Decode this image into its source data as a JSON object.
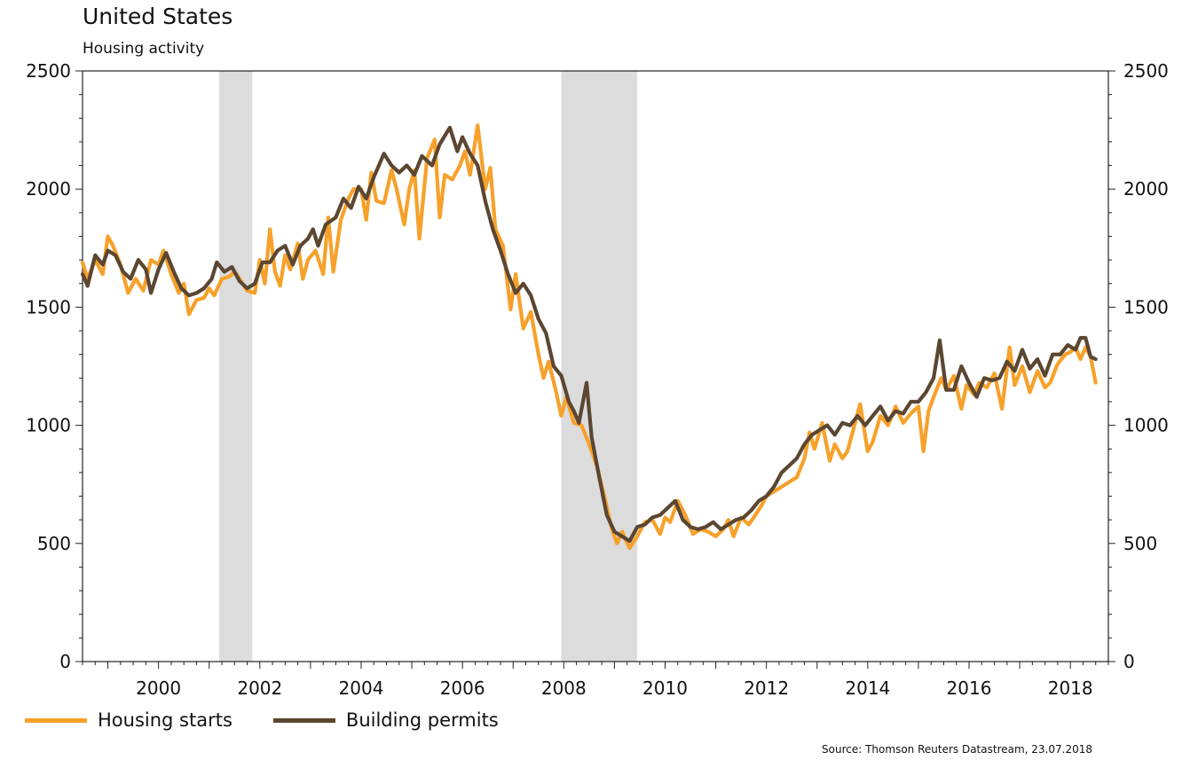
{
  "header": {
    "title": "United States",
    "subtitle": "Housing activity"
  },
  "source": "Source: Thomson Reuters Datastream, 23.07.2018",
  "colors": {
    "housing_starts": "#F7A12A",
    "building_permits": "#5B4631",
    "recession_shade": "#DCDCDC"
  },
  "chart_data": {
    "type": "line",
    "title": "United States",
    "subtitle": "Housing activity",
    "xlabel": "",
    "ylabel": "",
    "xlim": [
      1998.5,
      2018.75
    ],
    "ylim": [
      0,
      2500
    ],
    "x_ticks": [
      "2000",
      "2002",
      "2004",
      "2006",
      "2008",
      "2010",
      "2012",
      "2014",
      "2016",
      "2018"
    ],
    "y_ticks_left": [
      "0",
      "500",
      "1000",
      "1500",
      "2000",
      "2500"
    ],
    "y_ticks_right": [
      "0",
      "500",
      "1000",
      "1500",
      "2000",
      "2500"
    ],
    "grid": false,
    "legend_position": "bottom-left",
    "recessions": [
      [
        2001.2,
        2001.85
      ],
      [
        2007.95,
        2009.45
      ]
    ],
    "series": [
      {
        "name": "Housing starts",
        "points": [
          [
            1998.5,
            1690
          ],
          [
            1998.6,
            1620
          ],
          [
            1998.75,
            1700
          ],
          [
            1998.9,
            1640
          ],
          [
            1999.0,
            1800
          ],
          [
            1999.1,
            1760
          ],
          [
            1999.25,
            1680
          ],
          [
            1999.4,
            1560
          ],
          [
            1999.55,
            1620
          ],
          [
            1999.7,
            1570
          ],
          [
            1999.85,
            1700
          ],
          [
            2000.0,
            1680
          ],
          [
            2000.1,
            1740
          ],
          [
            2000.25,
            1640
          ],
          [
            2000.4,
            1560
          ],
          [
            2000.5,
            1600
          ],
          [
            2000.6,
            1470
          ],
          [
            2000.75,
            1530
          ],
          [
            2000.9,
            1540
          ],
          [
            2001.0,
            1580
          ],
          [
            2001.1,
            1550
          ],
          [
            2001.25,
            1620
          ],
          [
            2001.4,
            1630
          ],
          [
            2001.5,
            1650
          ],
          [
            2001.6,
            1620
          ],
          [
            2001.75,
            1570
          ],
          [
            2001.9,
            1560
          ],
          [
            2002.0,
            1700
          ],
          [
            2002.1,
            1600
          ],
          [
            2002.2,
            1830
          ],
          [
            2002.3,
            1650
          ],
          [
            2002.4,
            1590
          ],
          [
            2002.5,
            1720
          ],
          [
            2002.6,
            1660
          ],
          [
            2002.75,
            1770
          ],
          [
            2002.85,
            1620
          ],
          [
            2002.95,
            1700
          ],
          [
            2003.1,
            1740
          ],
          [
            2003.25,
            1640
          ],
          [
            2003.35,
            1880
          ],
          [
            2003.45,
            1650
          ],
          [
            2003.6,
            1870
          ],
          [
            2003.75,
            1960
          ],
          [
            2003.85,
            2000
          ],
          [
            2004.0,
            2000
          ],
          [
            2004.1,
            1870
          ],
          [
            2004.2,
            2070
          ],
          [
            2004.3,
            1950
          ],
          [
            2004.45,
            1940
          ],
          [
            2004.6,
            2080
          ],
          [
            2004.7,
            2000
          ],
          [
            2004.85,
            1850
          ],
          [
            2004.95,
            2000
          ],
          [
            2005.05,
            2080
          ],
          [
            2005.15,
            1790
          ],
          [
            2005.3,
            2130
          ],
          [
            2005.45,
            2210
          ],
          [
            2005.55,
            1880
          ],
          [
            2005.65,
            2060
          ],
          [
            2005.8,
            2040
          ],
          [
            2005.95,
            2100
          ],
          [
            2006.05,
            2160
          ],
          [
            2006.15,
            2060
          ],
          [
            2006.3,
            2270
          ],
          [
            2006.45,
            2000
          ],
          [
            2006.55,
            2090
          ],
          [
            2006.65,
            1830
          ],
          [
            2006.8,
            1760
          ],
          [
            2006.95,
            1490
          ],
          [
            2007.05,
            1640
          ],
          [
            2007.2,
            1410
          ],
          [
            2007.35,
            1480
          ],
          [
            2007.5,
            1300
          ],
          [
            2007.6,
            1200
          ],
          [
            2007.7,
            1270
          ],
          [
            2007.85,
            1140
          ],
          [
            2007.95,
            1040
          ],
          [
            2008.05,
            1120
          ],
          [
            2008.2,
            1010
          ],
          [
            2008.35,
            1000
          ],
          [
            2008.5,
            920
          ],
          [
            2008.65,
            830
          ],
          [
            2008.8,
            700
          ],
          [
            2008.95,
            560
          ],
          [
            2009.05,
            500
          ],
          [
            2009.15,
            550
          ],
          [
            2009.3,
            480
          ],
          [
            2009.45,
            530
          ],
          [
            2009.6,
            590
          ],
          [
            2009.75,
            600
          ],
          [
            2009.9,
            540
          ],
          [
            2010.0,
            610
          ],
          [
            2010.1,
            590
          ],
          [
            2010.25,
            680
          ],
          [
            2010.4,
            620
          ],
          [
            2010.55,
            540
          ],
          [
            2010.7,
            560
          ],
          [
            2010.85,
            550
          ],
          [
            2011.0,
            530
          ],
          [
            2011.15,
            560
          ],
          [
            2011.25,
            600
          ],
          [
            2011.35,
            530
          ],
          [
            2011.5,
            610
          ],
          [
            2011.65,
            580
          ],
          [
            2011.75,
            610
          ],
          [
            2011.9,
            660
          ],
          [
            2012.0,
            700
          ],
          [
            2012.15,
            720
          ],
          [
            2012.3,
            740
          ],
          [
            2012.45,
            760
          ],
          [
            2012.6,
            780
          ],
          [
            2012.75,
            860
          ],
          [
            2012.85,
            970
          ],
          [
            2012.95,
            900
          ],
          [
            2013.1,
            1010
          ],
          [
            2013.25,
            850
          ],
          [
            2013.35,
            920
          ],
          [
            2013.5,
            860
          ],
          [
            2013.6,
            890
          ],
          [
            2013.75,
            1010
          ],
          [
            2013.85,
            1090
          ],
          [
            2014.0,
            890
          ],
          [
            2014.1,
            930
          ],
          [
            2014.25,
            1040
          ],
          [
            2014.4,
            1000
          ],
          [
            2014.55,
            1080
          ],
          [
            2014.7,
            1010
          ],
          [
            2014.85,
            1050
          ],
          [
            2015.0,
            1080
          ],
          [
            2015.1,
            890
          ],
          [
            2015.2,
            1060
          ],
          [
            2015.3,
            1120
          ],
          [
            2015.45,
            1200
          ],
          [
            2015.55,
            1150
          ],
          [
            2015.7,
            1210
          ],
          [
            2015.85,
            1070
          ],
          [
            2015.95,
            1170
          ],
          [
            2016.1,
            1130
          ],
          [
            2016.2,
            1180
          ],
          [
            2016.35,
            1160
          ],
          [
            2016.5,
            1220
          ],
          [
            2016.65,
            1070
          ],
          [
            2016.8,
            1330
          ],
          [
            2016.9,
            1170
          ],
          [
            2017.05,
            1250
          ],
          [
            2017.2,
            1140
          ],
          [
            2017.35,
            1230
          ],
          [
            2017.5,
            1160
          ],
          [
            2017.6,
            1180
          ],
          [
            2017.75,
            1260
          ],
          [
            2017.9,
            1300
          ],
          [
            2018.0,
            1310
          ],
          [
            2018.1,
            1330
          ],
          [
            2018.2,
            1280
          ],
          [
            2018.3,
            1330
          ],
          [
            2018.4,
            1290
          ],
          [
            2018.5,
            1180
          ]
        ]
      },
      {
        "name": "Building permits",
        "points": [
          [
            1998.5,
            1640
          ],
          [
            1998.6,
            1590
          ],
          [
            1998.75,
            1720
          ],
          [
            1998.9,
            1680
          ],
          [
            1999.0,
            1740
          ],
          [
            1999.15,
            1720
          ],
          [
            1999.3,
            1650
          ],
          [
            1999.45,
            1620
          ],
          [
            1999.6,
            1700
          ],
          [
            1999.75,
            1660
          ],
          [
            1999.85,
            1560
          ],
          [
            2000.0,
            1660
          ],
          [
            2000.15,
            1730
          ],
          [
            2000.3,
            1650
          ],
          [
            2000.45,
            1580
          ],
          [
            2000.6,
            1550
          ],
          [
            2000.75,
            1560
          ],
          [
            2000.9,
            1580
          ],
          [
            2001.05,
            1620
          ],
          [
            2001.15,
            1690
          ],
          [
            2001.3,
            1650
          ],
          [
            2001.45,
            1670
          ],
          [
            2001.6,
            1610
          ],
          [
            2001.75,
            1580
          ],
          [
            2001.9,
            1600
          ],
          [
            2002.05,
            1690
          ],
          [
            2002.2,
            1690
          ],
          [
            2002.35,
            1740
          ],
          [
            2002.5,
            1760
          ],
          [
            2002.65,
            1680
          ],
          [
            2002.8,
            1760
          ],
          [
            2002.95,
            1790
          ],
          [
            2003.05,
            1830
          ],
          [
            2003.15,
            1760
          ],
          [
            2003.3,
            1850
          ],
          [
            2003.5,
            1880
          ],
          [
            2003.65,
            1960
          ],
          [
            2003.8,
            1920
          ],
          [
            2003.95,
            2010
          ],
          [
            2004.1,
            1960
          ],
          [
            2004.25,
            2050
          ],
          [
            2004.45,
            2150
          ],
          [
            2004.6,
            2100
          ],
          [
            2004.75,
            2070
          ],
          [
            2004.9,
            2100
          ],
          [
            2005.05,
            2060
          ],
          [
            2005.2,
            2140
          ],
          [
            2005.4,
            2100
          ],
          [
            2005.55,
            2190
          ],
          [
            2005.75,
            2260
          ],
          [
            2005.9,
            2160
          ],
          [
            2006.0,
            2220
          ],
          [
            2006.15,
            2150
          ],
          [
            2006.3,
            2100
          ],
          [
            2006.45,
            1950
          ],
          [
            2006.6,
            1830
          ],
          [
            2006.75,
            1740
          ],
          [
            2006.9,
            1640
          ],
          [
            2007.05,
            1560
          ],
          [
            2007.2,
            1600
          ],
          [
            2007.35,
            1550
          ],
          [
            2007.5,
            1450
          ],
          [
            2007.65,
            1390
          ],
          [
            2007.8,
            1250
          ],
          [
            2007.95,
            1210
          ],
          [
            2008.1,
            1100
          ],
          [
            2008.2,
            1060
          ],
          [
            2008.3,
            1010
          ],
          [
            2008.45,
            1180
          ],
          [
            2008.55,
            950
          ],
          [
            2008.7,
            780
          ],
          [
            2008.85,
            620
          ],
          [
            2009.0,
            550
          ],
          [
            2009.15,
            530
          ],
          [
            2009.3,
            510
          ],
          [
            2009.45,
            570
          ],
          [
            2009.6,
            580
          ],
          [
            2009.75,
            610
          ],
          [
            2009.9,
            620
          ],
          [
            2010.05,
            650
          ],
          [
            2010.2,
            680
          ],
          [
            2010.35,
            600
          ],
          [
            2010.5,
            570
          ],
          [
            2010.65,
            560
          ],
          [
            2010.8,
            570
          ],
          [
            2010.95,
            590
          ],
          [
            2011.1,
            560
          ],
          [
            2011.25,
            580
          ],
          [
            2011.4,
            600
          ],
          [
            2011.55,
            610
          ],
          [
            2011.7,
            640
          ],
          [
            2011.85,
            680
          ],
          [
            2012.0,
            700
          ],
          [
            2012.15,
            740
          ],
          [
            2012.3,
            800
          ],
          [
            2012.45,
            830
          ],
          [
            2012.6,
            860
          ],
          [
            2012.75,
            920
          ],
          [
            2012.9,
            960
          ],
          [
            2013.05,
            980
          ],
          [
            2013.2,
            1000
          ],
          [
            2013.35,
            960
          ],
          [
            2013.5,
            1010
          ],
          [
            2013.65,
            1000
          ],
          [
            2013.8,
            1040
          ],
          [
            2013.95,
            1000
          ],
          [
            2014.1,
            1040
          ],
          [
            2014.25,
            1080
          ],
          [
            2014.4,
            1020
          ],
          [
            2014.55,
            1060
          ],
          [
            2014.7,
            1050
          ],
          [
            2014.85,
            1100
          ],
          [
            2015.0,
            1100
          ],
          [
            2015.15,
            1140
          ],
          [
            2015.3,
            1200
          ],
          [
            2015.42,
            1360
          ],
          [
            2015.55,
            1150
          ],
          [
            2015.7,
            1150
          ],
          [
            2015.85,
            1250
          ],
          [
            2016.0,
            1180
          ],
          [
            2016.15,
            1120
          ],
          [
            2016.3,
            1200
          ],
          [
            2016.45,
            1190
          ],
          [
            2016.6,
            1200
          ],
          [
            2016.75,
            1270
          ],
          [
            2016.9,
            1230
          ],
          [
            2017.05,
            1320
          ],
          [
            2017.2,
            1240
          ],
          [
            2017.35,
            1280
          ],
          [
            2017.5,
            1210
          ],
          [
            2017.65,
            1300
          ],
          [
            2017.8,
            1300
          ],
          [
            2017.95,
            1340
          ],
          [
            2018.1,
            1320
          ],
          [
            2018.2,
            1370
          ],
          [
            2018.3,
            1370
          ],
          [
            2018.4,
            1290
          ],
          [
            2018.5,
            1280
          ]
        ]
      }
    ]
  }
}
